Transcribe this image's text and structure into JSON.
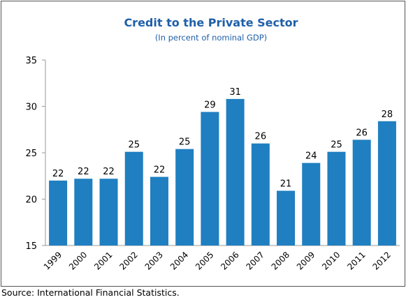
{
  "chart_data": {
    "type": "bar",
    "title": "Credit to the Private Sector",
    "subtitle": "(In percent of nominal GDP)",
    "source": "Source: International Financial Statistics.",
    "categories": [
      "1999",
      "2000",
      "2001",
      "2002",
      "2003",
      "2004",
      "2005",
      "2006",
      "2007",
      "2008",
      "2009",
      "2010",
      "2011",
      "2012"
    ],
    "values": [
      22.0,
      22.2,
      22.2,
      25.1,
      22.4,
      25.4,
      29.4,
      30.8,
      26.0,
      20.9,
      23.9,
      25.1,
      26.4,
      28.4
    ],
    "value_labels": [
      "22",
      "22",
      "22",
      "25",
      "22",
      "25",
      "29",
      "31",
      "26",
      "21",
      "24",
      "25",
      "26",
      "28"
    ],
    "color": "#1f7fc1",
    "ylim": [
      15,
      35
    ],
    "yticks": [
      15,
      20,
      25,
      30,
      35
    ]
  }
}
